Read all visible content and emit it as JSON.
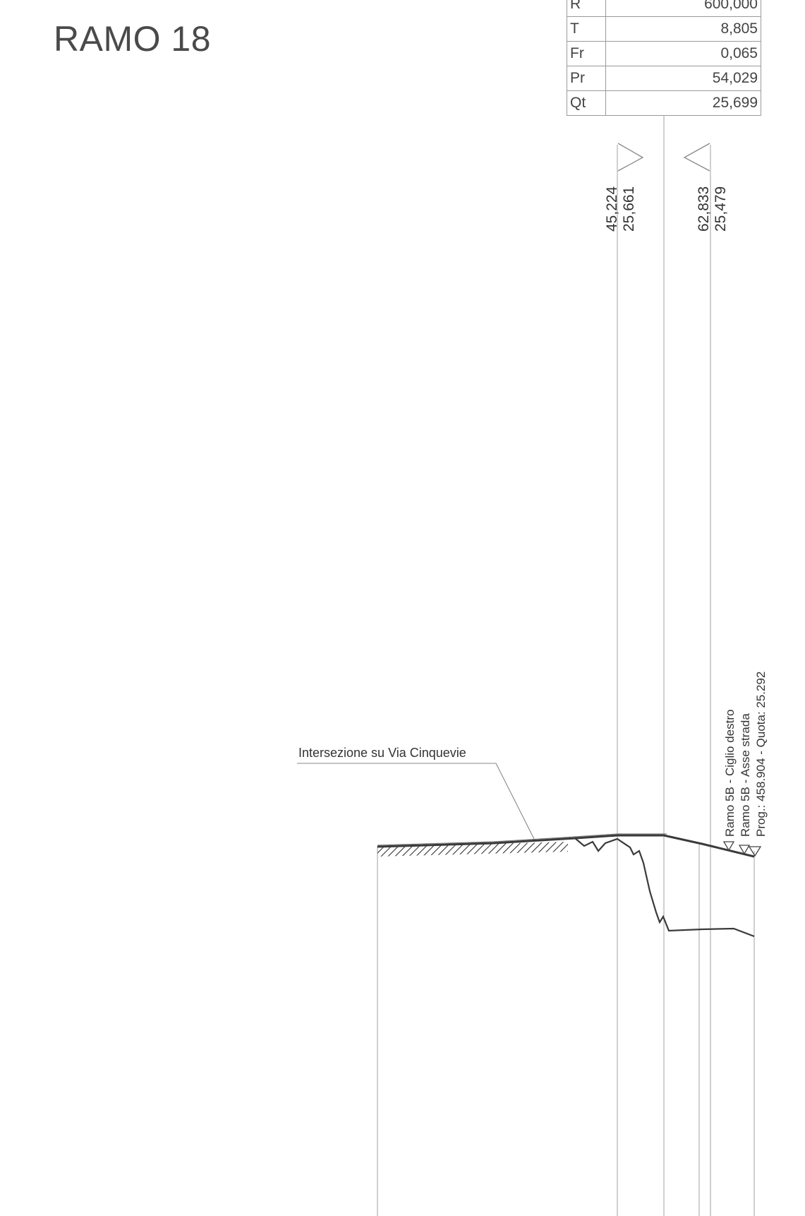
{
  "title": "RAMO 18",
  "params_table": [
    {
      "key": "R",
      "value": "600,000"
    },
    {
      "key": "T",
      "value": "8,805"
    },
    {
      "key": "Fr",
      "value": "0,065"
    },
    {
      "key": "Pr",
      "value": "54,029"
    },
    {
      "key": "Qt",
      "value": "25,699"
    }
  ],
  "tangent_points": [
    {
      "prog": "45,224",
      "quota": "25,661"
    },
    {
      "prog": "62,833",
      "quota": "25,479"
    }
  ],
  "annotations": {
    "intersection_label": "Intersezione su Via Cinquevie",
    "right_labels": [
      "Ramo 5B - Ciglio destro",
      "Ramo 5B - Asse strada",
      "Prog.: 458.904 - Quota: 25.292"
    ]
  }
}
